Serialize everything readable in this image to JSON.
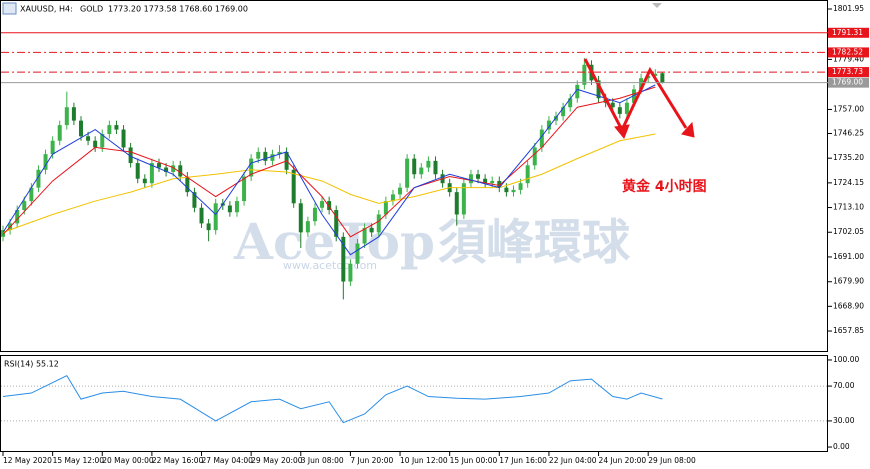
{
  "chart_data": {
    "type": "candlestick",
    "symbol": "XAUUSD, H4:",
    "name": "GOLD",
    "ohlc_text": "1773.20 1773.58 1768.60 1769.00",
    "annotation": "黄金  4小时图",
    "watermark": "AceTop",
    "watermark_cn": "須峰環球",
    "watermark_url": "www.acetop.com",
    "up_color": "#3cb34a",
    "down_color": "#1e7d2c",
    "xticks": [
      {
        "value": 0,
        "label": "12 May 2020"
      },
      {
        "value": 7,
        "label": "15 May 12:00"
      },
      {
        "value": 14,
        "label": "20 May 00:00"
      },
      {
        "value": 21,
        "label": "22 May 16:00"
      },
      {
        "value": 28,
        "label": "27 May 04:00"
      },
      {
        "value": 35,
        "label": "29 May 20:00"
      },
      {
        "value": 42,
        "label": "3 Jun 08:00"
      },
      {
        "value": 49,
        "label": "7 Jun 20:00"
      },
      {
        "value": 56,
        "label": "10 Jun 12:00"
      },
      {
        "value": 63,
        "label": "15 Jun 00:00"
      },
      {
        "value": 70,
        "label": "17 Jun 16:00"
      },
      {
        "value": 77,
        "label": "22 Jun 04:00"
      },
      {
        "value": 84,
        "label": "24 Jun 20:00"
      },
      {
        "value": 91,
        "label": "29 Jun 08:00"
      }
    ],
    "ylim": [
      1648.46,
      1805.98
    ],
    "yticks": [
      1801.95,
      {
        "value": 1779.4,
        "label": "1779.40"
      },
      {
        "value": 1757,
        "label": "1757.00"
      },
      1746.25,
      {
        "value": 1735.2,
        "label": "1735.20"
      },
      1724.15,
      {
        "value": 1713.1,
        "label": "1713.10"
      },
      1702.05,
      {
        "value": 1691,
        "label": "1691.00"
      },
      {
        "value": 1679.9,
        "label": "1679.90"
      },
      {
        "value": 1668.9,
        "label": "1668.90"
      },
      1657.85
    ],
    "open": [
      1700,
      1703,
      1706,
      1712,
      1716,
      1722,
      1730,
      1737,
      1743,
      1750,
      1758,
      1752,
      1745,
      1743,
      1740,
      1746,
      1750,
      1748,
      1740,
      1733,
      1726,
      1724,
      1733,
      1731,
      1729,
      1732,
      1727,
      1720,
      1713,
      1706,
      1703,
      1715,
      1714,
      1711,
      1716,
      1727,
      1735,
      1738,
      1734,
      1737,
      1738,
      1730,
      1715,
      1702,
      1707,
      1713,
      1716,
      1712,
      1700,
      1680,
      1688,
      1697,
      1704,
      1702,
      1710,
      1716,
      1719,
      1722,
      1735,
      1728,
      1731,
      1734,
      1728,
      1724,
      1720,
      1710,
      1724,
      1728,
      1726,
      1724,
      1725,
      1722,
      1720,
      1721,
      1724,
      1732,
      1740,
      1748,
      1752,
      1754,
      1758,
      1762,
      1768,
      1777,
      1770,
      1762,
      1760,
      1758,
      1755,
      1760,
      1766,
      1771,
      1772,
      1773.2
    ],
    "high": [
      1705,
      1708,
      1714,
      1718,
      1724,
      1732,
      1739,
      1745,
      1752,
      1765,
      1760,
      1754,
      1747,
      1745,
      1748,
      1752,
      1752,
      1750,
      1742,
      1735,
      1728,
      1735,
      1735,
      1733,
      1734,
      1734,
      1729,
      1722,
      1715,
      1708,
      1717,
      1717,
      1716,
      1718,
      1729,
      1737,
      1740,
      1740,
      1739,
      1741,
      1740,
      1732,
      1717,
      1709,
      1715,
      1718,
      1718,
      1714,
      1702,
      1690,
      1699,
      1706,
      1706,
      1712,
      1718,
      1721,
      1724,
      1737,
      1737,
      1733,
      1736,
      1736,
      1730,
      1726,
      1722,
      1726,
      1730,
      1730,
      1728,
      1727,
      1727,
      1724,
      1723,
      1726,
      1734,
      1742,
      1750,
      1754,
      1756,
      1760,
      1764,
      1770,
      1780,
      1779,
      1772,
      1764,
      1762,
      1760,
      1762,
      1768,
      1773,
      1774,
      1775,
      1773.58
    ],
    "low": [
      1698,
      1701,
      1704,
      1710,
      1714,
      1720,
      1728,
      1735,
      1741,
      1748,
      1750,
      1743,
      1741,
      1738,
      1738,
      1744,
      1746,
      1738,
      1731,
      1724,
      1722,
      1722,
      1729,
      1727,
      1727,
      1725,
      1718,
      1711,
      1704,
      1698,
      1701,
      1712,
      1709,
      1709,
      1714,
      1725,
      1733,
      1732,
      1732,
      1735,
      1728,
      1713,
      1695,
      1700,
      1705,
      1711,
      1710,
      1698,
      1672,
      1678,
      1686,
      1695,
      1700,
      1700,
      1708,
      1714,
      1717,
      1720,
      1726,
      1726,
      1729,
      1726,
      1722,
      1718,
      1705,
      1708,
      1722,
      1724,
      1722,
      1722,
      1720,
      1718,
      1718,
      1719,
      1722,
      1730,
      1738,
      1746,
      1750,
      1752,
      1756,
      1760,
      1766,
      1768,
      1760,
      1758,
      1756,
      1753,
      1753,
      1758,
      1764,
      1769,
      1770,
      1768.6
    ],
    "close": [
      1703,
      1706,
      1712,
      1716,
      1722,
      1730,
      1737,
      1743,
      1750,
      1758,
      1752,
      1745,
      1743,
      1740,
      1746,
      1750,
      1748,
      1740,
      1733,
      1726,
      1724,
      1733,
      1731,
      1729,
      1732,
      1727,
      1720,
      1713,
      1706,
      1703,
      1715,
      1714,
      1711,
      1716,
      1727,
      1735,
      1738,
      1734,
      1737,
      1738,
      1730,
      1715,
      1702,
      1707,
      1713,
      1716,
      1712,
      1700,
      1680,
      1688,
      1697,
      1704,
      1702,
      1710,
      1716,
      1719,
      1722,
      1735,
      1728,
      1731,
      1734,
      1728,
      1724,
      1720,
      1710,
      1724,
      1728,
      1726,
      1724,
      1725,
      1722,
      1720,
      1721,
      1724,
      1732,
      1740,
      1748,
      1752,
      1754,
      1758,
      1762,
      1768,
      1777,
      1770,
      1762,
      1760,
      1758,
      1755,
      1760,
      1766,
      1771,
      1772,
      1773,
      1769
    ],
    "ma": [
      {
        "color": "#f2c200",
        "x": [
          0,
          7,
          13,
          18,
          24,
          30,
          35,
          40,
          45,
          49,
          53,
          58,
          63,
          70,
          76,
          81,
          87,
          92
        ],
        "values": [
          1702,
          1710,
          1716,
          1720,
          1726,
          1728,
          1730,
          1729,
          1725,
          1719,
          1715,
          1718,
          1722,
          1722,
          1728,
          1735,
          1743,
          1746
        ]
      },
      {
        "color": "#e8141b",
        "x": [
          0,
          7,
          13,
          18,
          24,
          30,
          35,
          40,
          45,
          49,
          53,
          58,
          63,
          70,
          76,
          81,
          87,
          92
        ],
        "values": [
          1701,
          1725,
          1740,
          1738,
          1731,
          1718,
          1728,
          1734,
          1718,
          1700,
          1707,
          1722,
          1727,
          1723,
          1740,
          1758,
          1762,
          1767
        ]
      },
      {
        "color": "#1f3fd8",
        "x": [
          0,
          7,
          13,
          18,
          24,
          30,
          35,
          40,
          45,
          49,
          53,
          58,
          63,
          70,
          76,
          81,
          87,
          92
        ],
        "values": [
          1702,
          1737,
          1748,
          1736,
          1728,
          1710,
          1733,
          1738,
          1710,
          1692,
          1700,
          1722,
          1728,
          1722,
          1745,
          1766,
          1760,
          1768
        ]
      }
    ],
    "levels": [
      {
        "value": 1791.31,
        "label": "1791.31",
        "color": "#e8141b",
        "style": "solid"
      },
      {
        "value": 1782.52,
        "label": "1782.52",
        "color": "#e8141b",
        "style": "dashdot"
      },
      {
        "value": 1773.73,
        "label": "1773.73",
        "color": "#e8141b",
        "style": "dashdot"
      },
      {
        "value": 1769,
        "label": "1769.00",
        "color": "#9a9a9a",
        "style": "solid"
      }
    ],
    "rsi": {
      "title": "RSI(14) 55.12",
      "color": "#2a8ee6",
      "ylim": [
        -5.7,
        105.7
      ],
      "yticks": [
        {
          "value": 100,
          "label": "100.00"
        },
        {
          "value": 70,
          "label": "70.00"
        },
        {
          "value": 30,
          "label": "30.00"
        },
        {
          "value": 0,
          "label": "0.00"
        }
      ],
      "levels": [
        70,
        30
      ],
      "x": [
        0,
        4,
        9,
        11,
        14,
        17,
        21,
        25,
        28,
        30,
        35,
        39,
        42,
        46,
        48,
        51,
        54,
        57,
        60,
        64,
        68,
        73,
        77,
        80,
        83,
        86,
        88,
        90,
        93
      ],
      "values": [
        58,
        62,
        82,
        55,
        62,
        64,
        58,
        55,
        40,
        30,
        52,
        55,
        44,
        52,
        28,
        38,
        60,
        70,
        58,
        56,
        55,
        58,
        62,
        76,
        78,
        58,
        55,
        62,
        55.12
      ]
    }
  }
}
